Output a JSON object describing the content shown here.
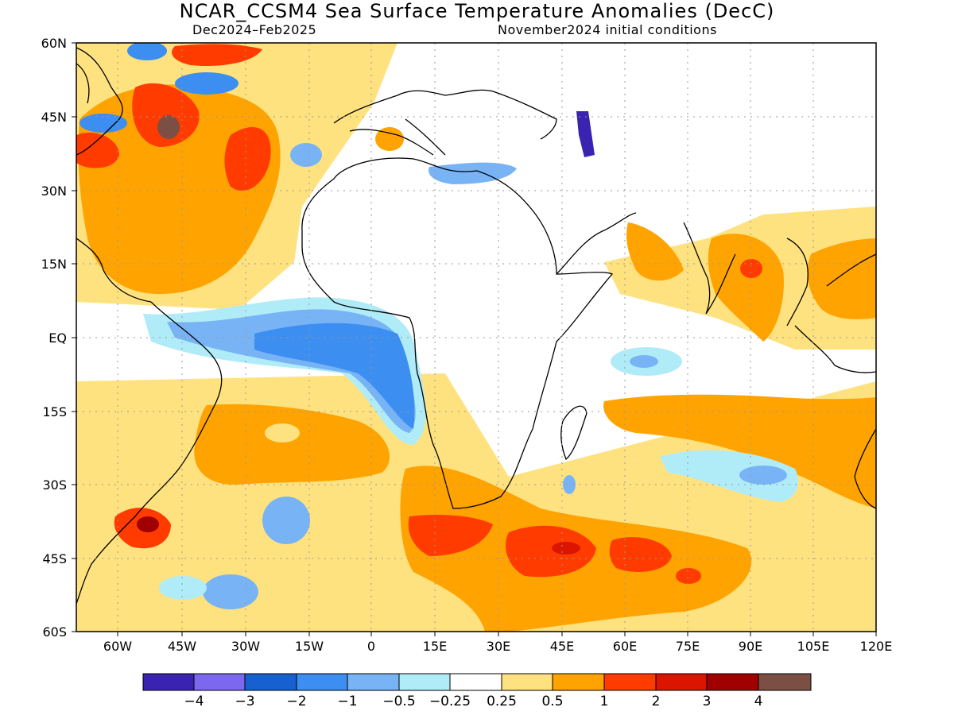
{
  "title": "NCAR_CCSM4 Sea Surface Temperature Anomalies (DecC)",
  "subtitle_left": "Dec2024–Feb2025",
  "subtitle_right": "November2024 initial conditions",
  "lat_ticks": [
    "60N",
    "45N",
    "30N",
    "15N",
    "EQ",
    "15S",
    "30S",
    "45S",
    "60S"
  ],
  "lon_ticks": [
    "60W",
    "45W",
    "30W",
    "15W",
    "0",
    "15E",
    "30E",
    "45E",
    "60E",
    "75E",
    "90E",
    "105E",
    "120E"
  ],
  "colorbar": {
    "colors": [
      "#3a23b0",
      "#7b68ee",
      "#1660d0",
      "#3c8ef0",
      "#78b4f5",
      "#b0ecf8",
      "#ffffff",
      "#ffe280",
      "#ffa300",
      "#ff3b00",
      "#dc1500",
      "#a00000",
      "#7b4f43"
    ],
    "labels": [
      "−4",
      "−3",
      "−2",
      "−1",
      "−0.5",
      "−0.25",
      "0.25",
      "0.5",
      "1",
      "2",
      "3",
      "4"
    ]
  }
}
